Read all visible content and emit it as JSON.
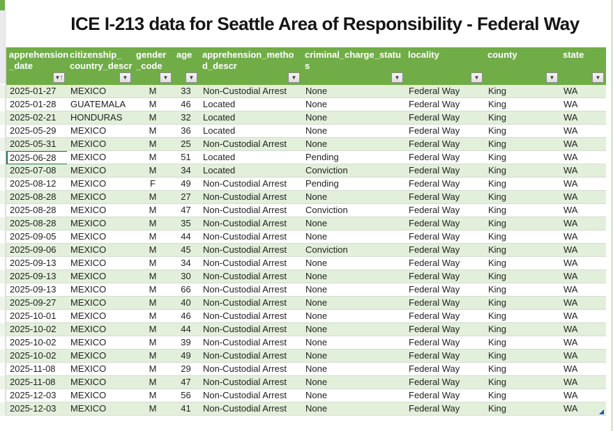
{
  "title": "ICE I-213 data for Seattle Area of Responsibility - Federal Way",
  "colors": {
    "header_bg": "#70AD47",
    "band_bg": "#E2EFDA",
    "selection_border": "#217346"
  },
  "table": {
    "columns": [
      {
        "id": "apprehension_date",
        "label": "apprehension\n_date",
        "width": 87,
        "align": "left",
        "filter": "sorted-asc"
      },
      {
        "id": "citizenship_country_descr",
        "label": "citizenship_\ncountry_descr",
        "width": 95,
        "align": "left",
        "filter": "default"
      },
      {
        "id": "gender_code",
        "label": "gender\n_code",
        "width": 58,
        "align": "center",
        "filter": "default"
      },
      {
        "id": "age",
        "label": "age",
        "width": 37,
        "align": "center",
        "filter": "default"
      },
      {
        "id": "apprehension_method_descr",
        "label": "apprehension_metho\nd_descr",
        "width": 147,
        "align": "left",
        "filter": "default"
      },
      {
        "id": "criminal_charge_status",
        "label": "criminal_charge_statu\ns",
        "width": 148,
        "align": "left",
        "filter": "default"
      },
      {
        "id": "locality",
        "label": "locality",
        "width": 114,
        "align": "left",
        "filter": "default"
      },
      {
        "id": "county",
        "label": "county",
        "width": 108,
        "align": "left",
        "filter": "default"
      },
      {
        "id": "state",
        "label": "state",
        "width": 66,
        "align": "left",
        "filter": "default"
      }
    ],
    "selected_cell": {
      "row": 5,
      "col": 0
    },
    "rows": [
      [
        "2025-01-27",
        "MEXICO",
        "M",
        "33",
        "Non-Custodial Arrest",
        "None",
        "Federal Way",
        "King",
        "WA"
      ],
      [
        "2025-01-28",
        "GUATEMALA",
        "M",
        "46",
        "Located",
        "None",
        "Federal Way",
        "King",
        "WA"
      ],
      [
        "2025-02-21",
        "HONDURAS",
        "M",
        "32",
        "Located",
        "None",
        "Federal Way",
        "King",
        "WA"
      ],
      [
        "2025-05-29",
        "MEXICO",
        "M",
        "36",
        "Located",
        "None",
        "Federal Way",
        "King",
        "WA"
      ],
      [
        "2025-05-31",
        "MEXICO",
        "M",
        "25",
        "Non-Custodial Arrest",
        "None",
        "Federal Way",
        "King",
        "WA"
      ],
      [
        "2025-06-28",
        "MEXICO",
        "M",
        "51",
        "Located",
        "Pending",
        "Federal Way",
        "King",
        "WA"
      ],
      [
        "2025-07-08",
        "MEXICO",
        "M",
        "34",
        "Located",
        "Conviction",
        "Federal Way",
        "King",
        "WA"
      ],
      [
        "2025-08-12",
        "MEXICO",
        "F",
        "49",
        "Non-Custodial Arrest",
        "Pending",
        "Federal Way",
        "King",
        "WA"
      ],
      [
        "2025-08-28",
        "MEXICO",
        "M",
        "27",
        "Non-Custodial Arrest",
        "None",
        "Federal Way",
        "King",
        "WA"
      ],
      [
        "2025-08-28",
        "MEXICO",
        "M",
        "47",
        "Non-Custodial Arrest",
        "Conviction",
        "Federal Way",
        "King",
        "WA"
      ],
      [
        "2025-08-28",
        "MEXICO",
        "M",
        "35",
        "Non-Custodial Arrest",
        "None",
        "Federal Way",
        "King",
        "WA"
      ],
      [
        "2025-09-05",
        "MEXICO",
        "M",
        "44",
        "Non-Custodial Arrest",
        "None",
        "Federal Way",
        "King",
        "WA"
      ],
      [
        "2025-09-06",
        "MEXICO",
        "M",
        "45",
        "Non-Custodial Arrest",
        "Conviction",
        "Federal Way",
        "King",
        "WA"
      ],
      [
        "2025-09-13",
        "MEXICO",
        "M",
        "34",
        "Non-Custodial Arrest",
        "None",
        "Federal Way",
        "King",
        "WA"
      ],
      [
        "2025-09-13",
        "MEXICO",
        "M",
        "30",
        "Non-Custodial Arrest",
        "None",
        "Federal Way",
        "King",
        "WA"
      ],
      [
        "2025-09-13",
        "MEXICO",
        "M",
        "66",
        "Non-Custodial Arrest",
        "None",
        "Federal Way",
        "King",
        "WA"
      ],
      [
        "2025-09-27",
        "MEXICO",
        "M",
        "40",
        "Non-Custodial Arrest",
        "None",
        "Federal Way",
        "King",
        "WA"
      ],
      [
        "2025-10-01",
        "MEXICO",
        "M",
        "46",
        "Non-Custodial Arrest",
        "None",
        "Federal Way",
        "King",
        "WA"
      ],
      [
        "2025-10-02",
        "MEXICO",
        "M",
        "44",
        "Non-Custodial Arrest",
        "None",
        "Federal Way",
        "King",
        "WA"
      ],
      [
        "2025-10-02",
        "MEXICO",
        "M",
        "39",
        "Non-Custodial Arrest",
        "None",
        "Federal Way",
        "King",
        "WA"
      ],
      [
        "2025-10-02",
        "MEXICO",
        "M",
        "49",
        "Non-Custodial Arrest",
        "None",
        "Federal Way",
        "King",
        "WA"
      ],
      [
        "2025-11-08",
        "MEXICO",
        "M",
        "29",
        "Non-Custodial Arrest",
        "None",
        "Federal Way",
        "King",
        "WA"
      ],
      [
        "2025-11-08",
        "MEXICO",
        "M",
        "47",
        "Non-Custodial Arrest",
        "None",
        "Federal Way",
        "King",
        "WA"
      ],
      [
        "2025-12-03",
        "MEXICO",
        "M",
        "56",
        "Non-Custodial Arrest",
        "None",
        "Federal Way",
        "King",
        "WA"
      ],
      [
        "2025-12-03",
        "MEXICO",
        "M",
        "41",
        "Non-Custodial Arrest",
        "None",
        "Federal Way",
        "King",
        "WA"
      ]
    ]
  },
  "icons": {
    "filter_dropdown": "▼",
    "sort_ascending": "↑"
  }
}
